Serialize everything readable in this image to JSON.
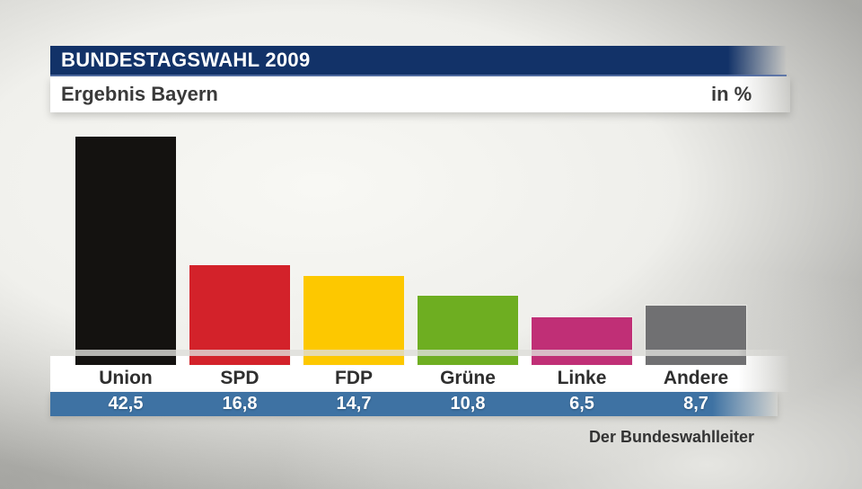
{
  "header": {
    "title": "BUNDESTAGSWAHL 2009",
    "subtitle": "Ergebnis Bayern",
    "unit_label": "in %"
  },
  "footer": {
    "source": "Der Bundeswahlleiter"
  },
  "colors": {
    "header_bar_blue": "#123268",
    "header_bar_bevel": "#5671a8",
    "value_band_blue": "#3e72a3",
    "label_text": "#2e2e2e",
    "value_text": "#ffffff"
  },
  "chart_data": {
    "type": "bar",
    "title": "Bundestagswahl 2009 — Ergebnis Bayern",
    "unit": "%",
    "categories": [
      "Union",
      "SPD",
      "FDP",
      "Grüne",
      "Linke",
      "Andere"
    ],
    "values": [
      42.5,
      16.8,
      14.7,
      10.8,
      6.5,
      8.7
    ],
    "value_labels": [
      "42,5",
      "16,8",
      "14,7",
      "10,8",
      "6,5",
      "8,7"
    ],
    "bar_colors": [
      "#141210",
      "#d3222a",
      "#fdc800",
      "#6eae21",
      "#c02f76",
      "#707072"
    ],
    "ylim": [
      0,
      45
    ],
    "grid": false,
    "legend": false,
    "source": "Der Bundeswahlleiter"
  }
}
